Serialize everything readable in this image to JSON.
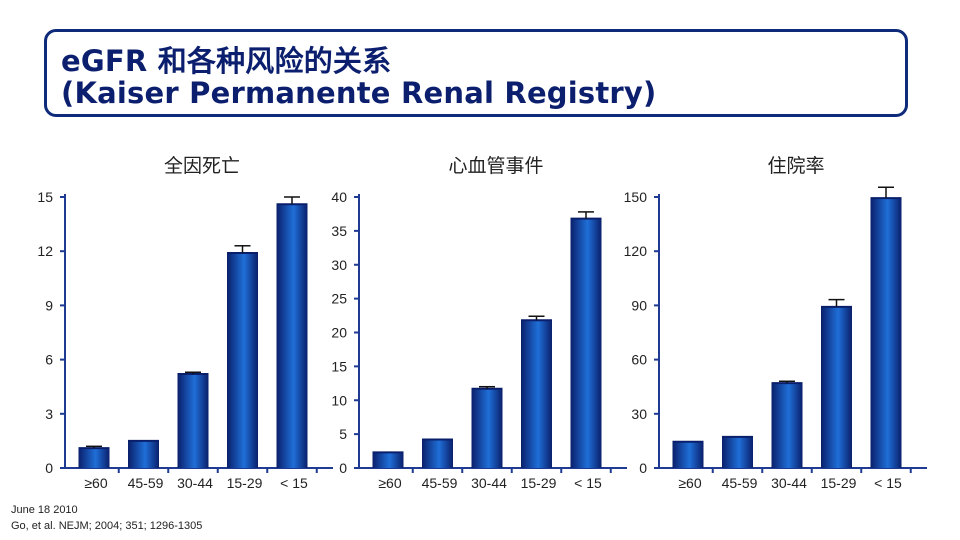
{
  "header": {
    "title_line1": "eGFR 和各种风险的关系",
    "title_line2": "(Kaiser Permanente Renal Registry)"
  },
  "colors": {
    "bar_dark": "#0a1f6b",
    "bar_light": "#1f6fd8",
    "axis": "#1f3a93",
    "frame": "#0d2b7a"
  },
  "chart_data": [
    {
      "type": "bar",
      "title": "全因死亡",
      "categories": [
        "≥60",
        "45-59",
        "30-44",
        "15-29",
        "< 15"
      ],
      "values": [
        1.1,
        1.5,
        5.2,
        11.9,
        14.6
      ],
      "errors": [
        0.1,
        0.0,
        0.1,
        0.4,
        0.4
      ],
      "yticks": [
        0,
        3,
        6,
        9,
        12,
        15
      ],
      "ylim": [
        0,
        15
      ],
      "xlabel": "",
      "ylabel": ""
    },
    {
      "type": "bar",
      "title": "心血管事件",
      "categories": [
        "≥60",
        "45-59",
        "30-44",
        "15-29",
        "< 15"
      ],
      "values": [
        2.3,
        4.2,
        11.7,
        21.8,
        36.8
      ],
      "errors": [
        0.0,
        0.0,
        0.3,
        0.6,
        1.0
      ],
      "yticks": [
        0,
        5,
        10,
        15,
        20,
        25,
        30,
        35,
        40
      ],
      "ylim": [
        0,
        40
      ],
      "xlabel": "",
      "ylabel": ""
    },
    {
      "type": "bar",
      "title": "住院率",
      "categories": [
        "≥60",
        "45-59",
        "30-44",
        "15-29",
        "< 15"
      ],
      "values": [
        14.5,
        17.2,
        47.0,
        89.2,
        149.4
      ],
      "errors": [
        0.0,
        0.0,
        1.0,
        4.0,
        6.0
      ],
      "yticks": [
        0,
        30,
        60,
        90,
        120,
        150
      ],
      "ylim": [
        0,
        150
      ],
      "xlabel": "",
      "ylabel": ""
    }
  ],
  "footnotes": {
    "date": "June 18 2010",
    "reference": "Go, et al. NEJM; 2004; 351; 1296-1305"
  }
}
